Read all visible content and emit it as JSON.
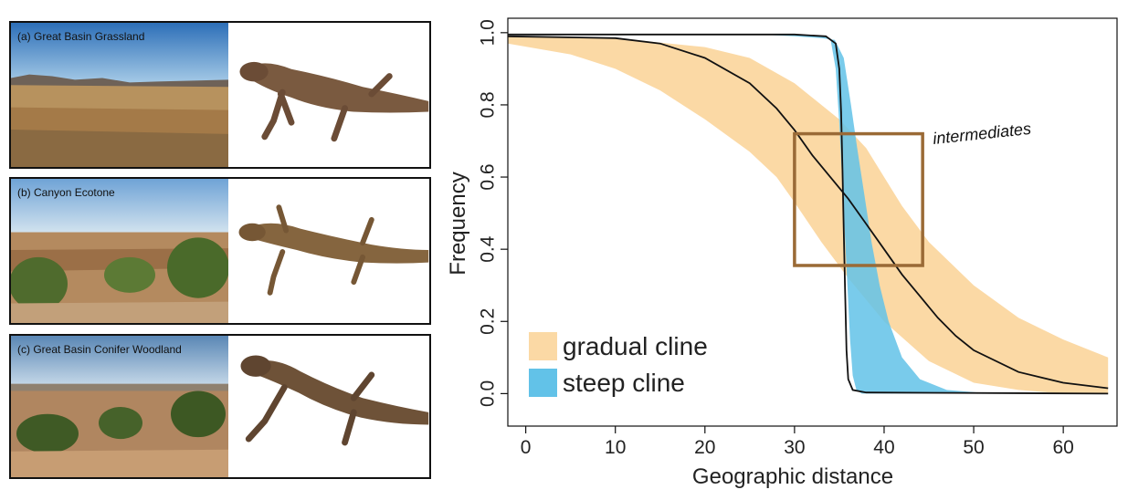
{
  "panels": [
    {
      "label": "(a) Great Basin Grassland"
    },
    {
      "label": "(b) Canyon Ecotone"
    },
    {
      "label": "(c) Great Basin Conifer Woodland"
    }
  ],
  "chart_data": {
    "type": "line",
    "xlabel": "Geographic distance",
    "ylabel": "Frequency",
    "xlim": [
      -2,
      66
    ],
    "ylim": [
      -0.09,
      1.04
    ],
    "xticks": [
      0,
      10,
      20,
      30,
      40,
      50,
      60
    ],
    "yticks": [
      0.0,
      0.2,
      0.4,
      0.6,
      0.8,
      1.0
    ],
    "ytick_labels": [
      "0.0",
      "0.2",
      "0.4",
      "0.6",
      "0.8",
      "1.0"
    ],
    "series": [
      {
        "name": "gradual cline",
        "color": "#fbd9a5",
        "band_upper": [
          [
            -2,
            0.99
          ],
          [
            10,
            0.985
          ],
          [
            20,
            0.96
          ],
          [
            25,
            0.93
          ],
          [
            30,
            0.86
          ],
          [
            35,
            0.76
          ],
          [
            38,
            0.68
          ],
          [
            40,
            0.6
          ],
          [
            42,
            0.52
          ],
          [
            45,
            0.42
          ],
          [
            50,
            0.3
          ],
          [
            55,
            0.21
          ],
          [
            60,
            0.15
          ],
          [
            65,
            0.1
          ]
        ],
        "band_lower": [
          [
            -2,
            0.97
          ],
          [
            5,
            0.94
          ],
          [
            10,
            0.9
          ],
          [
            15,
            0.84
          ],
          [
            20,
            0.76
          ],
          [
            25,
            0.67
          ],
          [
            28,
            0.6
          ],
          [
            30,
            0.53
          ],
          [
            33,
            0.42
          ],
          [
            36,
            0.32
          ],
          [
            40,
            0.2
          ],
          [
            45,
            0.09
          ],
          [
            50,
            0.03
          ],
          [
            55,
            0.01
          ],
          [
            60,
            0.0
          ],
          [
            65,
            0.0
          ]
        ],
        "line": [
          [
            -2,
            0.99
          ],
          [
            10,
            0.985
          ],
          [
            15,
            0.97
          ],
          [
            20,
            0.93
          ],
          [
            25,
            0.86
          ],
          [
            28,
            0.79
          ],
          [
            30,
            0.73
          ],
          [
            32,
            0.66
          ],
          [
            34,
            0.6
          ],
          [
            36,
            0.54
          ],
          [
            38,
            0.47
          ],
          [
            40,
            0.4
          ],
          [
            42,
            0.33
          ],
          [
            44,
            0.27
          ],
          [
            46,
            0.21
          ],
          [
            48,
            0.16
          ],
          [
            50,
            0.12
          ],
          [
            55,
            0.06
          ],
          [
            60,
            0.03
          ],
          [
            65,
            0.015
          ]
        ]
      },
      {
        "name": "steep cline",
        "color": "#62c2e8",
        "band_upper": [
          [
            -2,
            0.995
          ],
          [
            26,
            0.995
          ],
          [
            30,
            0.99
          ],
          [
            33,
            0.985
          ],
          [
            34.5,
            0.98
          ],
          [
            35.5,
            0.93
          ],
          [
            36.3,
            0.8
          ],
          [
            37,
            0.68
          ],
          [
            37.8,
            0.55
          ],
          [
            38.6,
            0.42
          ],
          [
            39.5,
            0.3
          ],
          [
            40.5,
            0.2
          ],
          [
            42,
            0.1
          ],
          [
            44,
            0.04
          ],
          [
            47,
            0.01
          ],
          [
            52,
            0.0
          ]
        ],
        "band_lower": [
          [
            -2,
            0.995
          ],
          [
            28,
            0.995
          ],
          [
            33,
            0.99
          ],
          [
            34,
            0.985
          ],
          [
            34.6,
            0.9
          ],
          [
            35,
            0.75
          ],
          [
            35.3,
            0.6
          ],
          [
            35.6,
            0.45
          ],
          [
            35.9,
            0.3
          ],
          [
            36.2,
            0.15
          ],
          [
            36.5,
            0.05
          ],
          [
            36.9,
            0.01
          ],
          [
            37.5,
            0.0
          ]
        ],
        "line": [
          [
            -2,
            0.995
          ],
          [
            30,
            0.995
          ],
          [
            33.5,
            0.99
          ],
          [
            34.6,
            0.97
          ],
          [
            35.0,
            0.9
          ],
          [
            35.2,
            0.78
          ],
          [
            35.35,
            0.62
          ],
          [
            35.5,
            0.45
          ],
          [
            35.65,
            0.28
          ],
          [
            35.8,
            0.12
          ],
          [
            36.0,
            0.04
          ],
          [
            36.5,
            0.01
          ],
          [
            38,
            0.003
          ],
          [
            65,
            0.0
          ]
        ]
      }
    ],
    "line_color": "#111111",
    "annotation_box": {
      "x": [
        30,
        44.3
      ],
      "y": [
        0.355,
        0.72
      ],
      "color": "#9a6a36"
    },
    "annotation_text": "intermediates",
    "legend": [
      {
        "label": "gradual cline",
        "color": "#fbd9a5"
      },
      {
        "label": "steep cline",
        "color": "#62c2e8"
      }
    ],
    "legend_position": "bottom-left"
  }
}
